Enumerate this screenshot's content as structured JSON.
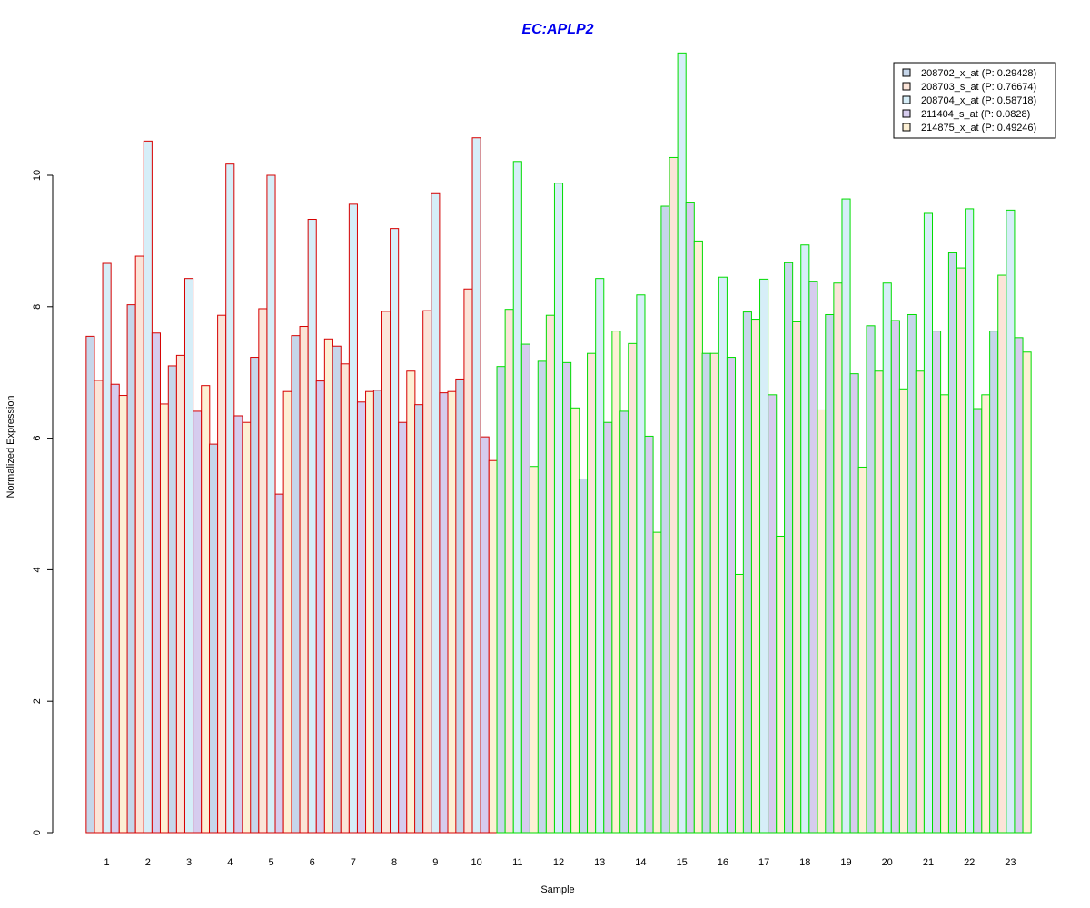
{
  "chart_data": {
    "type": "bar",
    "title": "EC:APLP2",
    "xlabel": "Sample",
    "ylabel": "Normalized Expression",
    "ylim": [
      0,
      12
    ],
    "yticks": [
      0,
      2,
      4,
      6,
      8,
      10
    ],
    "grid": false,
    "legend_position": "top-right",
    "categories": [
      "1",
      "2",
      "3",
      "4",
      "5",
      "6",
      "7",
      "8",
      "9",
      "10",
      "11",
      "12",
      "13",
      "14",
      "15",
      "16",
      "17",
      "18",
      "19",
      "20",
      "21",
      "22",
      "23"
    ],
    "series": [
      {
        "name": "208702_x_at (P: 0.29428)",
        "values": [
          7.55,
          8.03,
          7.1,
          5.91,
          7.23,
          7.56,
          7.4,
          6.73,
          6.51,
          6.9,
          7.09,
          7.17,
          5.38,
          6.41,
          9.53,
          7.29,
          7.92,
          8.67,
          7.88,
          7.71,
          7.88,
          8.82,
          7.63
        ]
      },
      {
        "name": "208703_s_at (P: 0.76674)",
        "values": [
          6.88,
          8.77,
          7.26,
          7.87,
          7.97,
          7.7,
          7.13,
          7.93,
          7.94,
          8.27,
          7.96,
          7.87,
          7.29,
          7.44,
          10.27,
          7.29,
          7.81,
          7.77,
          8.36,
          7.02,
          7.02,
          8.59,
          8.48
        ]
      },
      {
        "name": "208704_x_at (P: 0.58718)",
        "values": [
          8.66,
          10.52,
          8.43,
          10.17,
          10.0,
          9.33,
          9.56,
          9.19,
          9.72,
          10.57,
          10.21,
          9.88,
          8.43,
          8.18,
          11.86,
          8.45,
          8.42,
          8.94,
          9.64,
          8.36,
          9.42,
          9.49,
          9.47
        ]
      },
      {
        "name": "211404_s_at (P: 0.0828)",
        "values": [
          6.82,
          7.6,
          6.41,
          6.34,
          5.15,
          6.87,
          6.55,
          6.24,
          6.69,
          6.02,
          7.43,
          7.15,
          6.24,
          6.03,
          9.58,
          7.23,
          6.66,
          8.38,
          6.98,
          7.79,
          7.63,
          6.45,
          7.53
        ]
      },
      {
        "name": "214875_x_at (P: 0.49246)",
        "values": [
          6.65,
          6.52,
          6.8,
          6.24,
          6.71,
          7.51,
          6.71,
          7.02,
          6.71,
          5.66,
          5.57,
          6.46,
          7.63,
          4.57,
          9.0,
          3.93,
          4.51,
          6.43,
          5.56,
          6.75,
          6.66,
          6.66,
          7.31
        ]
      }
    ],
    "group_colors": {
      "1-10": "#d60000",
      "11-23": "#00dd00"
    },
    "series_fill_colors": [
      "#c6d6ea",
      "#fbe4d8",
      "#d6eef8",
      "#d6ccee",
      "#fdf0d4"
    ]
  }
}
